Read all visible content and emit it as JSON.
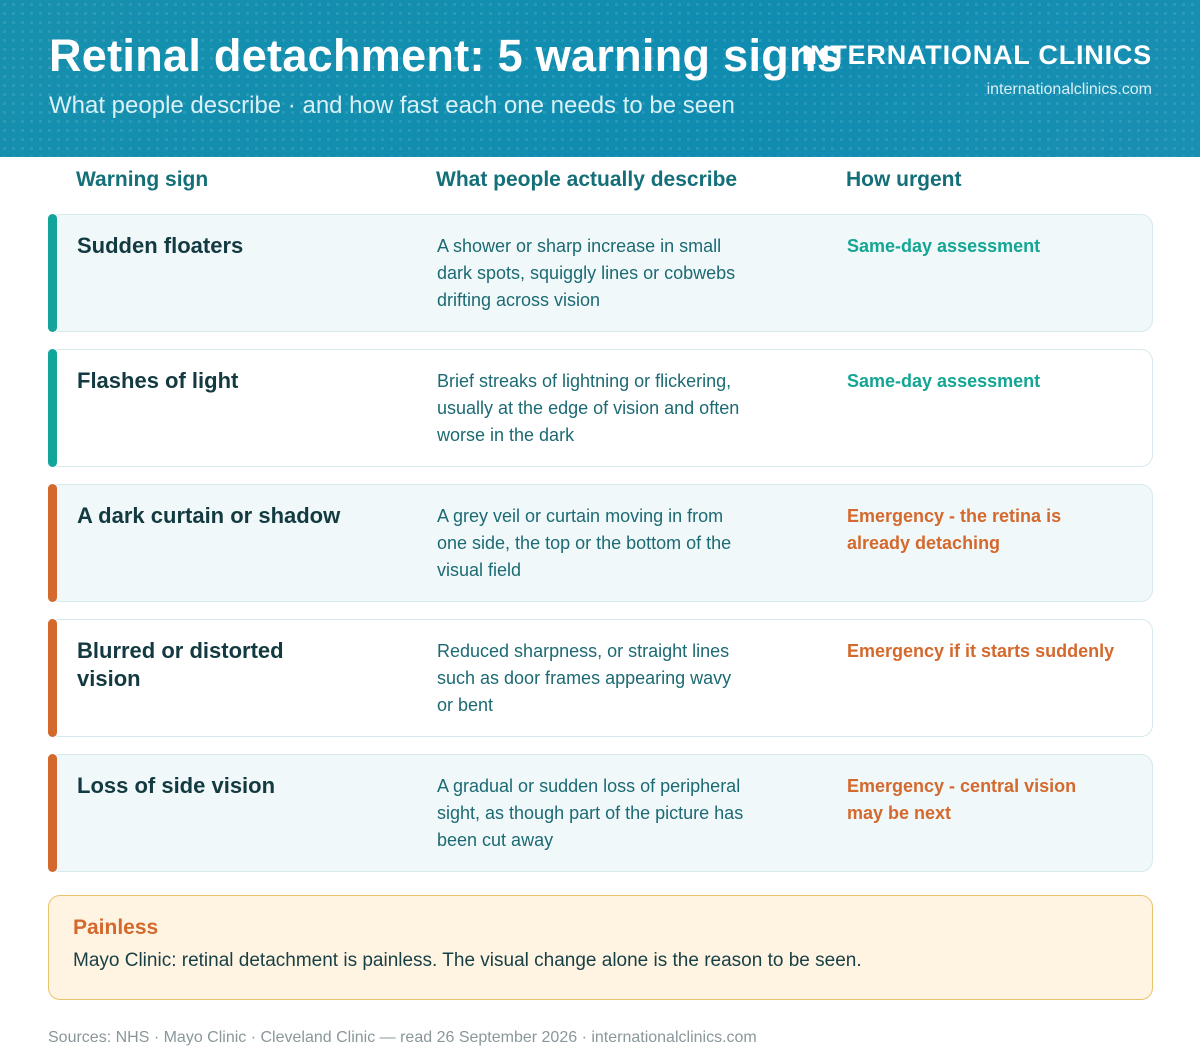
{
  "header": {
    "title": "Retinal detachment: 5 warning signs",
    "subtitle": "What people describe · and how fast each one needs to be seen",
    "brand": "INTERNATIONAL CLINICS",
    "brand_url": "internationalclinics.com"
  },
  "columns": {
    "sign": "Warning sign",
    "describe": "What people actually describe",
    "urgency": "How urgent"
  },
  "rows": [
    {
      "sign": "Sudden floaters",
      "description": "A shower or sharp increase in small dark spots, squiggly lines or cobwebs drifting across vision",
      "urgency": "Same-day assessment",
      "level": "same-day",
      "color": "#13a49b"
    },
    {
      "sign": "Flashes of light",
      "description": "Brief streaks of lightning or flickering, usually at the edge of vision and often worse in the dark",
      "urgency": "Same-day assessment",
      "level": "same-day",
      "color": "#13a49b"
    },
    {
      "sign": "A dark curtain or shadow",
      "description": "A grey veil or curtain moving in from one side, the top or the bottom of the visual field",
      "urgency": "Emergency - the retina is already detaching",
      "level": "emergency",
      "color": "#d4692d"
    },
    {
      "sign": "Blurred or distorted vision",
      "description": "Reduced sharpness, or straight lines such as door frames appearing wavy or bent",
      "urgency": "Emergency if it starts suddenly",
      "level": "emergency",
      "color": "#d4692d"
    },
    {
      "sign": "Loss of side vision",
      "description": "A gradual or sudden loss of peripheral sight, as though part of the picture has been cut away",
      "urgency": "Emergency - central vision may be next",
      "level": "emergency",
      "color": "#d4692d"
    }
  ],
  "callout": {
    "title": "Painless",
    "text": "Mayo Clinic: retinal detachment is painless. The visual change alone is the reason to be seen."
  },
  "footer": {
    "sources": "Sources: NHS · Mayo Clinic · Cleveland Clinic — read 26 September 2026 · internationalclinics.com"
  },
  "colors": {
    "header_bg": "#1790ad",
    "same_day": "#13a49b",
    "emergency": "#d4692d",
    "callout_bg": "#fff3e2"
  }
}
